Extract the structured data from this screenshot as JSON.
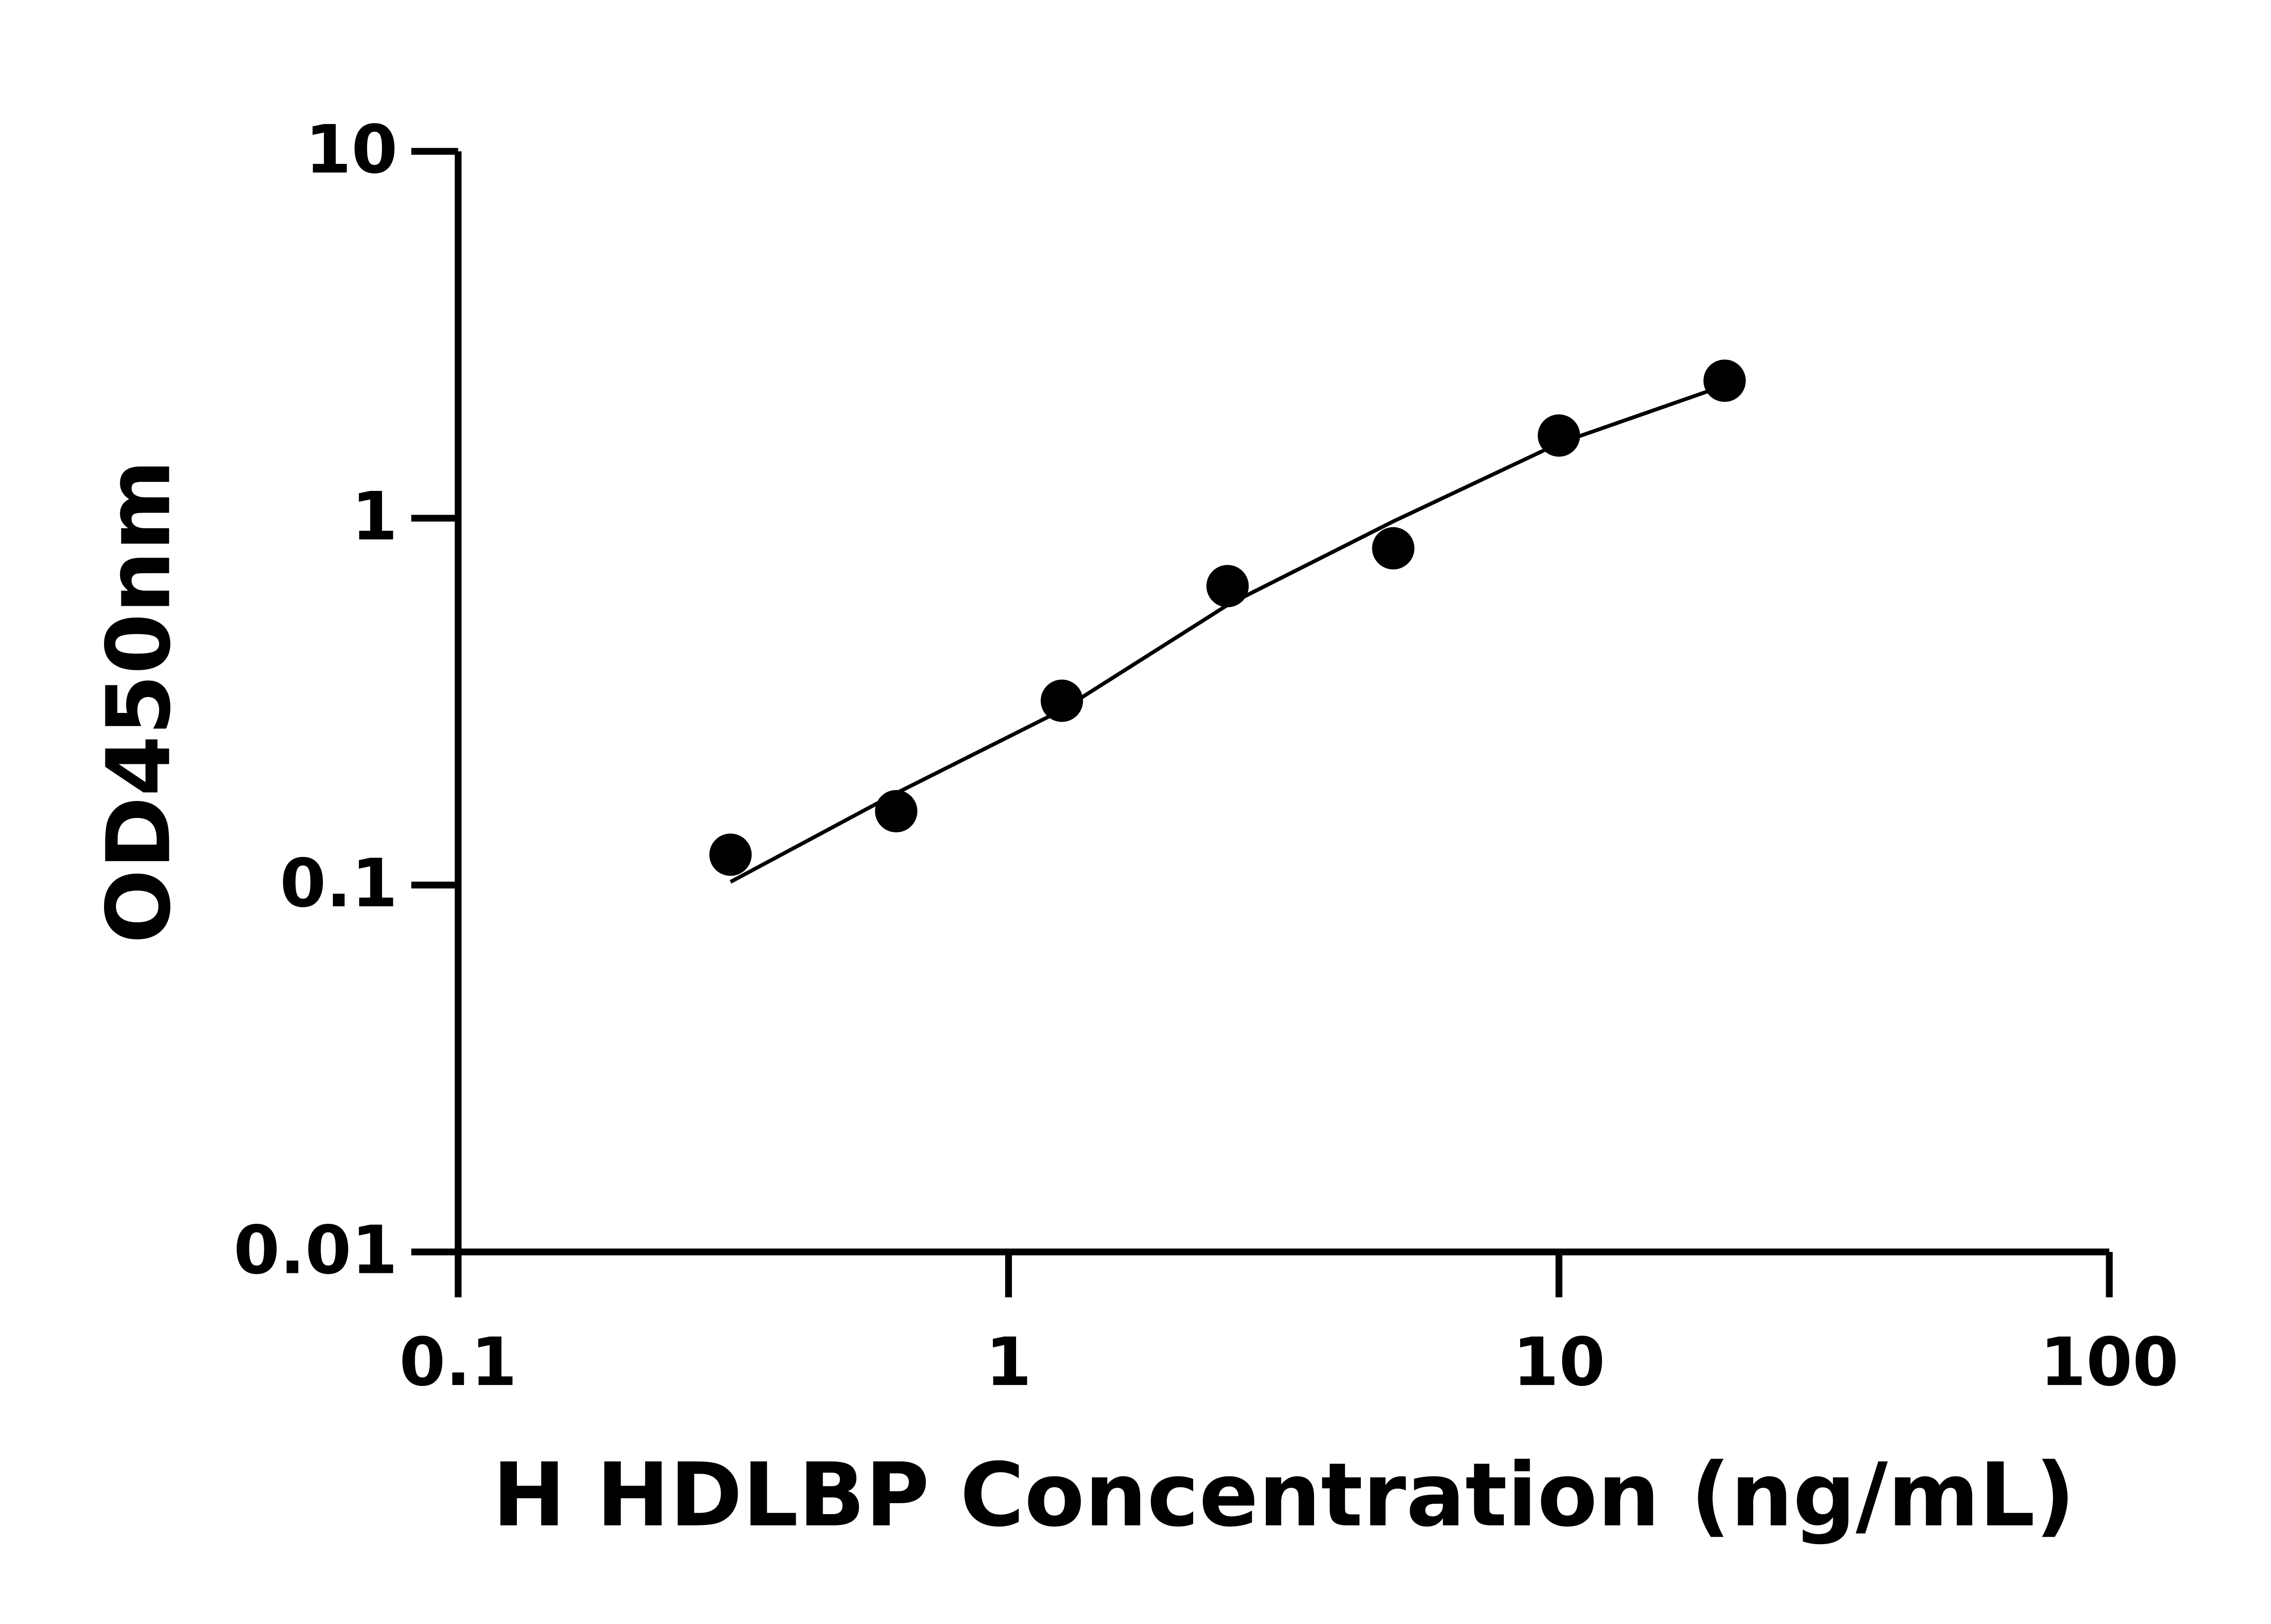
{
  "chart_data": {
    "type": "scatter",
    "x_label": "H HDLBP Concentration (ng/mL)",
    "y_label": "OD450nm",
    "x_log": true,
    "y_log": true,
    "xlim": [
      0.1,
      100
    ],
    "ylim": [
      0.01,
      10
    ],
    "xticks": [
      0.1,
      1,
      10,
      100
    ],
    "yticks": [
      0.01,
      0.1,
      1,
      10
    ],
    "series": [
      {
        "color": "#000000",
        "x": [
          0.3125,
          0.625,
          1.25,
          2.5,
          5,
          10,
          20
        ],
        "values": [
          0.121,
          0.159,
          0.318,
          0.653,
          0.828,
          1.68,
          2.37
        ]
      }
    ],
    "fit": {
      "color": "#000000",
      "x": [
        0.3125,
        0.625,
        1.25,
        2.5,
        5,
        10,
        20
      ],
      "values": [
        0.102,
        0.178,
        0.3,
        0.58,
        0.98,
        1.6,
        2.3
      ]
    }
  }
}
